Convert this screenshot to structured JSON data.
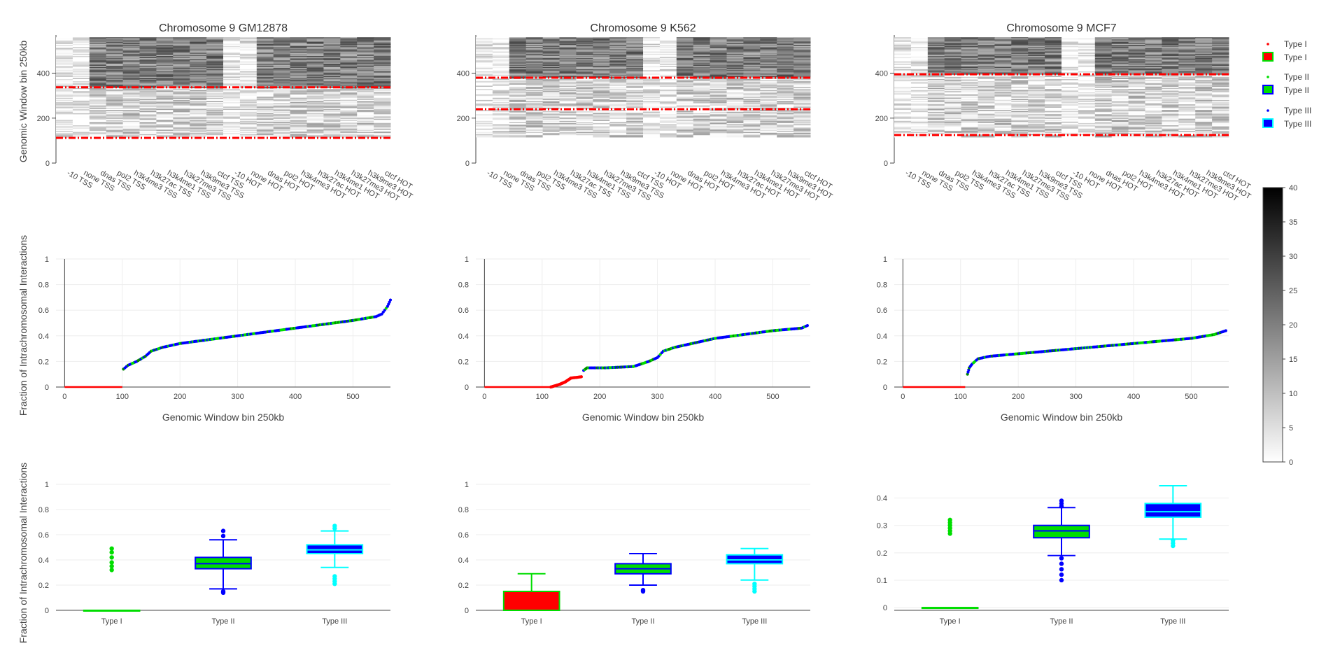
{
  "colors": {
    "type1": "#ff0000",
    "type2": "#00dd00",
    "type3": "#0000ff",
    "type3_box": "#00ffff"
  },
  "chart_data": [
    {
      "type": "heatmap",
      "title": "Chromosome 9 GM12878",
      "ylabel": "Genomic Window bin 250kb",
      "y_ticks": [
        0,
        200,
        400
      ],
      "x_categories": [
        "-10 TSS",
        "none TSS",
        "dnas TSS",
        "pol2 TSS",
        "h3k4me3 TSS",
        "h3k27ac TSS",
        "h3k4me1 TSS",
        "h3k27me3 TSS",
        "h3k9me3 TSS",
        "ctcf TSS",
        "-10 HOT",
        "none HOT",
        "dnas HOT",
        "pol2 HOT",
        "h3k4me3 HOT",
        "h3k27ac HOT",
        "h3k4me1 HOT",
        "h3k27me3 HOT",
        "h3k9me3 HOT",
        "ctcf HOT"
      ],
      "threshold_lines": [
        112,
        337
      ]
    },
    {
      "type": "heatmap",
      "title": "Chromosome 9 K562",
      "y_ticks": [
        0,
        200,
        400
      ],
      "x_categories": [
        "-10 TSS",
        "none TSS",
        "dnas TSS",
        "pol2 TSS",
        "h3k4me3 TSS",
        "h3k27ac TSS",
        "h3k4me1 TSS",
        "h3k27me3 TSS",
        "h3k9me3 TSS",
        "ctcf TSS",
        "-10 HOT",
        "none HOT",
        "dnas HOT",
        "pol2 HOT",
        "h3k4me3 HOT",
        "h3k27ac HOT",
        "h3k4me1 HOT",
        "h3k27me3 HOT",
        "h3k9me3 HOT",
        "ctcf HOT"
      ],
      "threshold_lines": [
        240,
        380
      ]
    },
    {
      "type": "heatmap",
      "title": "Chromosome 9 MCF7",
      "y_ticks": [
        0,
        200,
        400
      ],
      "x_categories": [
        "-10 TSS",
        "none TSS",
        "dnas TSS",
        "pol2 TSS",
        "h3k4me3 TSS",
        "h3k27ac TSS",
        "h3k4me1 TSS",
        "h3k27me3 TSS",
        "h3k9me3 TSS",
        "ctcf TSS",
        "-10 HOT",
        "none HOT",
        "dnas HOT",
        "pol2 HOT",
        "h3k4me3 HOT",
        "h3k27ac HOT",
        "h3k4me1 HOT",
        "h3k27me3 HOT",
        "h3k9me3 HOT",
        "ctcf HOT"
      ],
      "threshold_lines": [
        125,
        395
      ]
    },
    {
      "type": "colorbar",
      "ticks": [
        0,
        5,
        10,
        15,
        20,
        25,
        30,
        35,
        40
      ],
      "range": [
        0,
        40
      ]
    },
    {
      "type": "scatter",
      "xlabel": "Genomic Window bin 250kb",
      "ylabel": "Fraction of Intrachromosomal Interactions",
      "x_ticks": [
        0,
        100,
        200,
        300,
        400,
        500
      ],
      "y_ticks": [
        0,
        0.2,
        0.4,
        0.6,
        0.8,
        1
      ],
      "xlim": [
        -15,
        565
      ],
      "ylim": [
        0,
        1
      ],
      "segments": [
        {
          "type": 1,
          "points": [
            [
              0,
              0
            ],
            [
              100,
              0
            ]
          ]
        },
        {
          "type": 2,
          "points": [
            [
              102,
              0.14
            ],
            [
              110,
              0.17
            ],
            [
              125,
              0.2
            ],
            [
              140,
              0.24
            ],
            [
              150,
              0.28
            ],
            [
              170,
              0.31
            ],
            [
              200,
              0.34
            ],
            [
              250,
              0.37
            ],
            [
              300,
              0.4
            ],
            [
              350,
              0.43
            ],
            [
              400,
              0.46
            ],
            [
              450,
              0.49
            ],
            [
              500,
              0.52
            ],
            [
              540,
              0.55
            ],
            [
              550,
              0.57
            ],
            [
              560,
              0.63
            ],
            [
              565,
              0.68
            ]
          ]
        }
      ]
    },
    {
      "type": "scatter",
      "xlabel": "Genomic Window bin 250kb",
      "x_ticks": [
        0,
        100,
        200,
        300,
        400,
        500
      ],
      "y_ticks": [
        0,
        0.2,
        0.4,
        0.6,
        0.8,
        1
      ],
      "xlim": [
        -15,
        565
      ],
      "ylim": [
        0,
        1
      ],
      "segments": [
        {
          "type": 1,
          "points": [
            [
              0,
              0
            ],
            [
              115,
              0
            ],
            [
              130,
              0.02
            ],
            [
              140,
              0.04
            ],
            [
              150,
              0.07
            ],
            [
              168,
              0.08
            ]
          ]
        },
        {
          "type": 2,
          "points": [
            [
              172,
              0.13
            ],
            [
              178,
              0.15
            ],
            [
              210,
              0.15
            ],
            [
              258,
              0.16
            ],
            [
              265,
              0.17
            ],
            [
              285,
              0.2
            ],
            [
              300,
              0.23
            ],
            [
              310,
              0.28
            ],
            [
              330,
              0.31
            ],
            [
              360,
              0.34
            ],
            [
              400,
              0.38
            ],
            [
              450,
              0.41
            ],
            [
              500,
              0.44
            ],
            [
              550,
              0.46
            ],
            [
              560,
              0.48
            ]
          ]
        }
      ]
    },
    {
      "type": "scatter",
      "xlabel": "Genomic Window bin 250kb",
      "x_ticks": [
        0,
        100,
        200,
        300,
        400,
        500
      ],
      "y_ticks": [
        0,
        0.2,
        0.4,
        0.6,
        0.8,
        1
      ],
      "xlim": [
        -15,
        565
      ],
      "ylim": [
        0,
        1
      ],
      "segments": [
        {
          "type": 1,
          "points": [
            [
              0,
              0
            ],
            [
              108,
              0
            ]
          ]
        },
        {
          "type": 2,
          "points": [
            [
              112,
              0.1
            ],
            [
              115,
              0.15
            ],
            [
              120,
              0.18
            ],
            [
              130,
              0.22
            ],
            [
              150,
              0.24
            ],
            [
              200,
              0.26
            ],
            [
              250,
              0.28
            ],
            [
              300,
              0.3
            ],
            [
              350,
              0.32
            ],
            [
              400,
              0.34
            ],
            [
              450,
              0.36
            ],
            [
              500,
              0.38
            ],
            [
              540,
              0.41
            ],
            [
              560,
              0.44
            ]
          ]
        }
      ]
    },
    {
      "type": "box",
      "ylabel": "Fraction of Intrachromosomal Interactions",
      "categories": [
        "Type I",
        "Type II",
        "Type III"
      ],
      "y_ticks": [
        0,
        0.2,
        0.4,
        0.6,
        0.8,
        1
      ],
      "ylim": [
        0,
        1
      ],
      "boxes": [
        {
          "q1": 0,
          "median": 0,
          "q3": 0,
          "low": 0,
          "high": 0,
          "outliers": [
            0.32,
            0.35,
            0.38,
            0.42,
            0.46,
            0.49
          ],
          "fill": "#ff0000",
          "line": "#00dd00"
        },
        {
          "q1": 0.33,
          "median": 0.37,
          "q3": 0.42,
          "low": 0.17,
          "high": 0.56,
          "outliers": [
            0.14,
            0.15,
            0.59,
            0.63
          ],
          "fill": "#00dd00",
          "line": "#0000ff"
        },
        {
          "q1": 0.45,
          "median": 0.48,
          "q3": 0.52,
          "low": 0.34,
          "high": 0.63,
          "outliers": [
            0.21,
            0.23,
            0.25,
            0.27,
            0.65,
            0.67
          ],
          "fill": "#0000ff",
          "line": "#00ffff"
        }
      ]
    },
    {
      "type": "box",
      "categories": [
        "Type I",
        "Type II",
        "Type III"
      ],
      "y_ticks": [
        0,
        0.2,
        0.4,
        0.6,
        0.8,
        1
      ],
      "ylim": [
        0,
        1
      ],
      "boxes": [
        {
          "q1": 0,
          "median": 0,
          "q3": 0.15,
          "low": 0,
          "high": 0.29,
          "outliers": [],
          "fill": "#ff0000",
          "line": "#00dd00"
        },
        {
          "q1": 0.29,
          "median": 0.33,
          "q3": 0.37,
          "low": 0.2,
          "high": 0.45,
          "outliers": [
            0.15,
            0.16
          ],
          "fill": "#00dd00",
          "line": "#0000ff"
        },
        {
          "q1": 0.37,
          "median": 0.4,
          "q3": 0.44,
          "low": 0.24,
          "high": 0.49,
          "outliers": [
            0.15,
            0.17,
            0.19,
            0.21
          ],
          "fill": "#0000ff",
          "line": "#00ffff"
        }
      ]
    },
    {
      "type": "box",
      "categories": [
        "Type I",
        "Type II",
        "Type III"
      ],
      "y_ticks": [
        0,
        0.1,
        0.2,
        0.3,
        0.4
      ],
      "ylim": [
        -0.01,
        0.45
      ],
      "boxes": [
        {
          "q1": 0,
          "median": 0,
          "q3": 0,
          "low": 0,
          "high": 0,
          "outliers": [
            0.27,
            0.28,
            0.29,
            0.3,
            0.31,
            0.32
          ],
          "fill": "#ff0000",
          "line": "#00dd00"
        },
        {
          "q1": 0.255,
          "median": 0.28,
          "q3": 0.3,
          "low": 0.19,
          "high": 0.365,
          "outliers": [
            0.1,
            0.12,
            0.14,
            0.16,
            0.18,
            0.37,
            0.38,
            0.39
          ],
          "fill": "#00dd00",
          "line": "#0000ff"
        },
        {
          "q1": 0.33,
          "median": 0.35,
          "q3": 0.38,
          "low": 0.25,
          "high": 0.445,
          "outliers": [
            0.225,
            0.235,
            0.245
          ],
          "fill": "#0000ff",
          "line": "#00ffff"
        }
      ]
    }
  ],
  "legend": [
    {
      "label": "Type I",
      "kind": "marker",
      "color": "#ff0000"
    },
    {
      "label": "Type I",
      "kind": "box",
      "fill": "#ff0000",
      "line": "#00dd00"
    },
    {
      "label": "Type II",
      "kind": "marker",
      "color": "#00dd00"
    },
    {
      "label": "Type II",
      "kind": "box",
      "fill": "#00dd00",
      "line": "#0000ff"
    },
    {
      "label": "Type III",
      "kind": "marker",
      "color": "#0000ff"
    },
    {
      "label": "Type III",
      "kind": "box",
      "fill": "#0000ff",
      "line": "#00ffff"
    }
  ]
}
